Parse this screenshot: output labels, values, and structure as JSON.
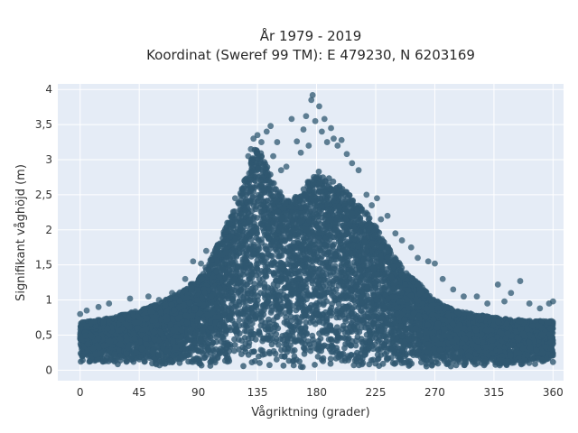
{
  "chart_data": {
    "type": "scatter",
    "title_lines": [
      "År 1979 - 2019",
      "Koordinat (Sweref 99 TM): E 479230, N 6203169"
    ],
    "xlabel": "Vågriktning (grader)",
    "ylabel": "Signifikant våghöjd (m)",
    "xlim": [
      -17,
      368
    ],
    "ylim": [
      -0.15,
      4.08
    ],
    "x_ticks": [
      0,
      45,
      90,
      135,
      180,
      225,
      270,
      315,
      360
    ],
    "x_tick_labels": [
      "0",
      "45",
      "90",
      "135",
      "180",
      "225",
      "270",
      "315",
      "360"
    ],
    "y_ticks": [
      0,
      0.5,
      1,
      1.5,
      2,
      2.5,
      3,
      3.5,
      4
    ],
    "y_tick_labels": [
      "0",
      "0,5",
      "1",
      "1,5",
      "2",
      "2,5",
      "3",
      "3,5",
      "4"
    ],
    "grid": true,
    "legend": "none",
    "marker_color": "#2f5870",
    "plot_background": "#e5ecf6",
    "density_envelope": {
      "x": [
        0,
        15,
        30,
        45,
        60,
        75,
        90,
        100,
        110,
        120,
        130,
        135,
        140,
        150,
        160,
        170,
        180,
        190,
        200,
        210,
        220,
        230,
        240,
        250,
        260,
        270,
        285,
        300,
        315,
        330,
        345,
        360
      ],
      "lower": [
        0.1,
        0.08,
        0.08,
        0.06,
        0.06,
        0.05,
        0.05,
        0.04,
        0.04,
        0.04,
        0.04,
        0.04,
        0.04,
        0.04,
        0.04,
        0.04,
        0.04,
        0.04,
        0.04,
        0.04,
        0.04,
        0.04,
        0.04,
        0.04,
        0.05,
        0.05,
        0.05,
        0.05,
        0.06,
        0.06,
        0.08,
        0.1
      ],
      "upper": [
        0.68,
        0.72,
        0.78,
        0.85,
        0.95,
        1.1,
        1.3,
        1.6,
        2.0,
        2.4,
        3.0,
        3.25,
        3.0,
        2.6,
        2.4,
        2.6,
        2.85,
        2.75,
        2.6,
        2.4,
        2.2,
        1.9,
        1.6,
        1.35,
        1.2,
        1.0,
        0.85,
        0.8,
        0.75,
        0.72,
        0.7,
        0.7
      ]
    },
    "sparse_points": [
      {
        "x": 0,
        "y": 0.8
      },
      {
        "x": 5,
        "y": 0.85
      },
      {
        "x": 14,
        "y": 0.9
      },
      {
        "x": 22,
        "y": 0.95
      },
      {
        "x": 38,
        "y": 1.02
      },
      {
        "x": 52,
        "y": 1.05
      },
      {
        "x": 60,
        "y": 1.0
      },
      {
        "x": 70,
        "y": 1.1
      },
      {
        "x": 80,
        "y": 1.3
      },
      {
        "x": 86,
        "y": 1.55
      },
      {
        "x": 92,
        "y": 1.52
      },
      {
        "x": 96,
        "y": 1.7
      },
      {
        "x": 105,
        "y": 1.75
      },
      {
        "x": 112,
        "y": 2.1
      },
      {
        "x": 118,
        "y": 2.45
      },
      {
        "x": 125,
        "y": 2.7
      },
      {
        "x": 128,
        "y": 3.05
      },
      {
        "x": 130,
        "y": 3.15
      },
      {
        "x": 132,
        "y": 3.3
      },
      {
        "x": 135,
        "y": 3.35
      },
      {
        "x": 138,
        "y": 3.25
      },
      {
        "x": 142,
        "y": 3.4
      },
      {
        "x": 145,
        "y": 3.48
      },
      {
        "x": 147,
        "y": 3.05
      },
      {
        "x": 150,
        "y": 3.25
      },
      {
        "x": 153,
        "y": 2.85
      },
      {
        "x": 157,
        "y": 2.9
      },
      {
        "x": 161,
        "y": 3.58
      },
      {
        "x": 165,
        "y": 3.26
      },
      {
        "x": 168,
        "y": 3.1
      },
      {
        "x": 170,
        "y": 3.43
      },
      {
        "x": 172,
        "y": 3.62
      },
      {
        "x": 174,
        "y": 3.2
      },
      {
        "x": 176,
        "y": 3.85
      },
      {
        "x": 177,
        "y": 3.92
      },
      {
        "x": 179,
        "y": 3.55
      },
      {
        "x": 182,
        "y": 3.76
      },
      {
        "x": 184,
        "y": 3.4
      },
      {
        "x": 186,
        "y": 3.58
      },
      {
        "x": 188,
        "y": 3.25
      },
      {
        "x": 191,
        "y": 3.45
      },
      {
        "x": 193,
        "y": 3.3
      },
      {
        "x": 196,
        "y": 3.2
      },
      {
        "x": 199,
        "y": 3.28
      },
      {
        "x": 203,
        "y": 3.08
      },
      {
        "x": 207,
        "y": 2.95
      },
      {
        "x": 212,
        "y": 2.85
      },
      {
        "x": 218,
        "y": 2.5
      },
      {
        "x": 222,
        "y": 2.35
      },
      {
        "x": 226,
        "y": 2.45
      },
      {
        "x": 229,
        "y": 2.15
      },
      {
        "x": 234,
        "y": 2.2
      },
      {
        "x": 240,
        "y": 1.95
      },
      {
        "x": 245,
        "y": 1.85
      },
      {
        "x": 252,
        "y": 1.75
      },
      {
        "x": 257,
        "y": 1.6
      },
      {
        "x": 265,
        "y": 1.55
      },
      {
        "x": 270,
        "y": 1.52
      },
      {
        "x": 276,
        "y": 1.3
      },
      {
        "x": 284,
        "y": 1.15
      },
      {
        "x": 292,
        "y": 1.05
      },
      {
        "x": 302,
        "y": 1.05
      },
      {
        "x": 310,
        "y": 0.95
      },
      {
        "x": 318,
        "y": 1.22
      },
      {
        "x": 323,
        "y": 0.98
      },
      {
        "x": 328,
        "y": 1.1
      },
      {
        "x": 335,
        "y": 1.27
      },
      {
        "x": 342,
        "y": 0.95
      },
      {
        "x": 350,
        "y": 0.88
      },
      {
        "x": 357,
        "y": 0.95
      },
      {
        "x": 360,
        "y": 0.98
      }
    ]
  }
}
